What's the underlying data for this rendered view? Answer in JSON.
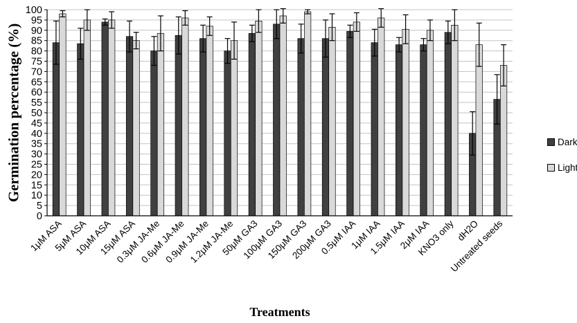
{
  "chart_data": {
    "type": "bar",
    "title": "",
    "xlabel": "Treatments",
    "ylabel": "Germination percentage (%)",
    "ylim": [
      0,
      100
    ],
    "ytick_step": 5,
    "grid": true,
    "legend_position": "right",
    "error_bars": true,
    "categories": [
      "1μM ASA",
      "5μM ASA",
      "10μM ASA",
      "15μM ASA",
      "0.3μM JA-Me",
      "0.6μM JA-Me",
      "0.9μM JA-Me",
      "1.2μM JA-Me",
      "50μM GA3",
      "100μM GA3",
      "150μM GA3",
      "200μM GA3",
      "0.5μM IAA",
      "1μM IAA",
      "1.5μM IAA",
      "2μM IAA",
      "KNO3 only",
      "dH2O",
      "Untreated seeds"
    ],
    "series": [
      {
        "name": "Dark",
        "color": "#404040",
        "values": [
          84,
          83.5,
          94,
          87,
          80,
          87.5,
          86,
          80,
          88.5,
          93,
          86,
          86,
          89.5,
          84,
          83,
          83,
          89,
          40,
          56.5
        ],
        "errors": [
          10.5,
          7.5,
          1.5,
          7.5,
          7,
          9,
          6.5,
          6,
          4,
          7,
          7,
          9,
          3,
          6.5,
          3.5,
          3,
          5.5,
          10.5,
          12
        ]
      },
      {
        "name": "Light",
        "color": "#d9d9d9",
        "values": [
          98,
          95,
          95,
          85,
          88.5,
          96,
          92,
          85,
          94.5,
          97,
          99,
          91.5,
          94,
          96,
          90.5,
          90,
          92.5,
          83,
          73
        ],
        "errors": [
          1.5,
          5,
          4,
          4,
          8.5,
          3.5,
          4.5,
          9,
          5.5,
          3.5,
          1,
          6.5,
          4.5,
          4.5,
          7,
          5,
          7.5,
          10.5,
          10
        ]
      }
    ],
    "style": {
      "gridline_color": "#c3c3c3",
      "axis_color": "#000000",
      "error_bar_color": "#000000",
      "background": "#ffffff"
    }
  }
}
